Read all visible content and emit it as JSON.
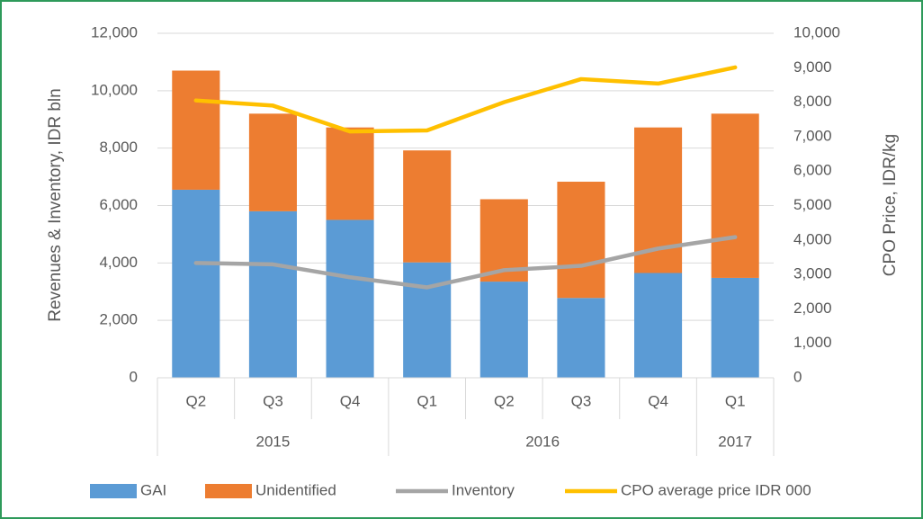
{
  "chart_data": {
    "type": "bar",
    "y_label": "Revenues & Inventory, IDR bln",
    "y2_label": "CPO Price, IDR/kg",
    "categories": [
      "Q2",
      "Q3",
      "Q4",
      "Q1",
      "Q2",
      "Q3",
      "Q4",
      "Q1"
    ],
    "year_groups": [
      {
        "name": "2015",
        "count": 3
      },
      {
        "name": "2016",
        "count": 4
      },
      {
        "name": "2017",
        "count": 1
      }
    ],
    "series": [
      {
        "name": "GAI",
        "type": "bar",
        "stacked": true,
        "color": "#5b9bd5",
        "values": [
          6550,
          5800,
          5500,
          4020,
          3350,
          2780,
          3650,
          3480
        ]
      },
      {
        "name": "Unidentified",
        "type": "bar",
        "stacked": true,
        "color": "#ed7d31",
        "values": [
          4150,
          3400,
          3220,
          3900,
          2870,
          4050,
          5070,
          5720
        ]
      },
      {
        "name": "Inventory",
        "type": "line",
        "color": "#a5a5a5",
        "values": [
          4000,
          3950,
          3500,
          3150,
          3750,
          3900,
          4500,
          4900
        ]
      },
      {
        "name": "CPO average price IDR 000",
        "type": "line",
        "axis": "y2",
        "color": "#ffc000",
        "values": [
          8050,
          7900,
          7150,
          7180,
          8000,
          8670,
          8540,
          9010
        ]
      }
    ],
    "ylim": [
      0,
      12000
    ],
    "yticks": [
      0,
      {
        "value": 2000,
        "label": "2,000"
      },
      {
        "value": 4000,
        "label": "4,000"
      },
      {
        "value": 6000,
        "label": "6,000"
      },
      {
        "value": 8000,
        "label": "8,000"
      },
      {
        "value": 10000,
        "label": "10,000"
      },
      {
        "value": 12000,
        "label": "12,000"
      }
    ],
    "y2lim": [
      0,
      10000
    ],
    "y2ticks": [
      0,
      {
        "value": 1000,
        "label": "1,000"
      },
      {
        "value": 2000,
        "label": "2,000"
      },
      {
        "value": 3000,
        "label": "3,000"
      },
      {
        "value": 4000,
        "label": "4,000"
      },
      {
        "value": 5000,
        "label": "5,000"
      },
      {
        "value": 6000,
        "label": "6,000"
      },
      {
        "value": 7000,
        "label": "7,000"
      },
      {
        "value": 8000,
        "label": "8,000"
      },
      {
        "value": 9000,
        "label": "9,000"
      },
      {
        "value": 10000,
        "label": "10,000"
      }
    ],
    "grid": true,
    "legend": "bottom"
  }
}
